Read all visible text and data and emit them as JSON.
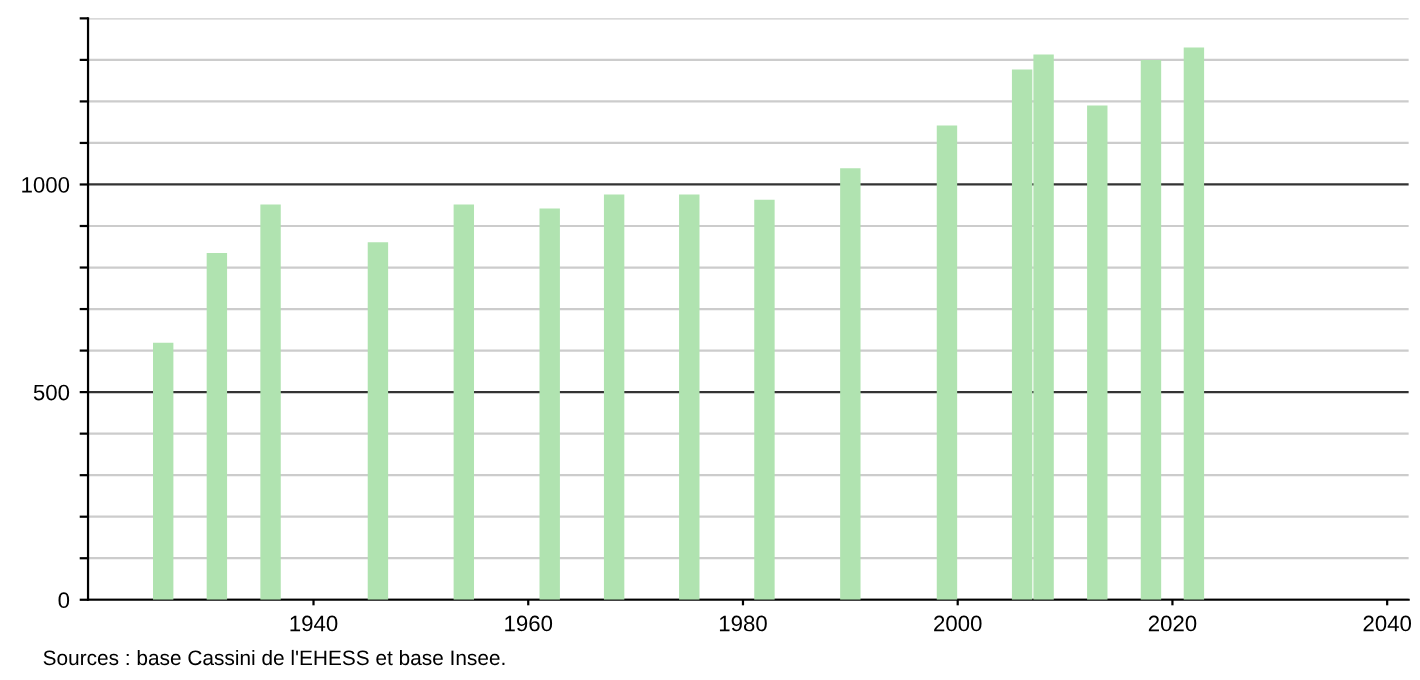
{
  "chart_data": {
    "type": "bar",
    "x": [
      1926,
      1931,
      1936,
      1946,
      1954,
      1962,
      1968,
      1975,
      1982,
      1990,
      1999,
      2006,
      2008,
      2013,
      2018,
      2022
    ],
    "values": [
      619,
      835,
      952,
      861,
      952,
      942,
      976,
      976,
      963,
      1039,
      1142,
      1277,
      1313,
      1190,
      1300,
      1330
    ],
    "color": "#b0e3b0",
    "xlim": [
      1919,
      2042
    ],
    "xticks": [
      1940,
      1960,
      1980,
      2000,
      2020,
      2040
    ],
    "ylim": [
      0,
      1400
    ],
    "yticks": [
      0,
      {
        "value": 100,
        "label": null
      },
      {
        "value": 200,
        "label": null
      },
      {
        "value": 300,
        "label": null
      },
      {
        "value": 400,
        "label": null
      },
      500,
      {
        "value": 600,
        "label": null
      },
      {
        "value": 700,
        "label": null
      },
      {
        "value": 800,
        "label": null
      },
      {
        "value": 900,
        "label": null
      },
      1000,
      {
        "value": 1100,
        "label": null
      },
      {
        "value": 1200,
        "label": null
      },
      {
        "value": 1300,
        "label": null
      },
      {
        "value": 1400,
        "label": null
      }
    ],
    "grid": "y",
    "annotations": [
      "Sources : base Cassini de l'EHESS et base Insee."
    ]
  }
}
